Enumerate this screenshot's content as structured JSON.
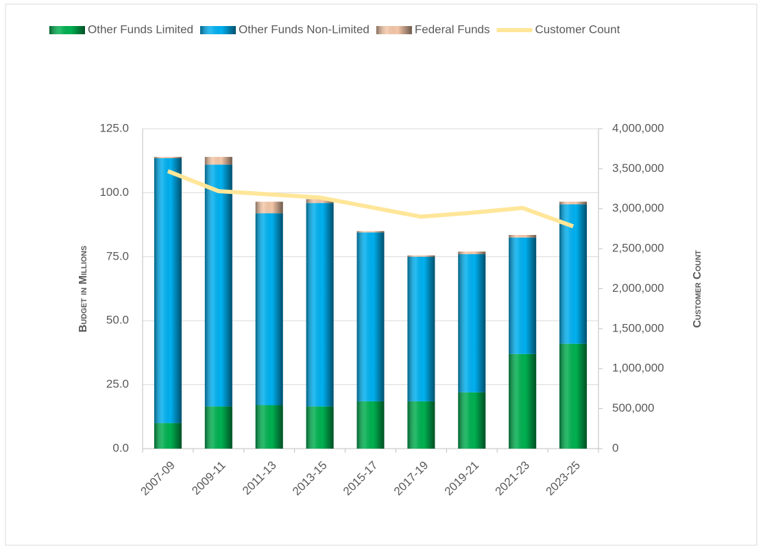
{
  "chart_data": {
    "type": "bar",
    "categories": [
      "2007-09",
      "2009-11",
      "2011-13",
      "2013-15",
      "2015-17",
      "2017-19",
      "2019-21",
      "2021-23",
      "2023-25"
    ],
    "stacked": true,
    "series": [
      {
        "name": "Other Funds Limited",
        "color": "#00b050",
        "values": [
          10,
          16.5,
          17,
          16.5,
          18.5,
          18.5,
          22,
          37,
          41
        ]
      },
      {
        "name": "Other Funds Non-Limited",
        "color": "#00b0f0",
        "values": [
          103.5,
          94.5,
          75,
          79.5,
          66,
          56.5,
          54,
          45.5,
          54.5
        ]
      },
      {
        "name": "Federal Funds",
        "color": "#f4c7a8",
        "values": [
          0.5,
          3,
          4.5,
          1.5,
          0.5,
          0.5,
          1,
          1,
          1
        ]
      },
      {
        "name": "Customer Count",
        "color": "#ffe699",
        "type": "line",
        "axis": "y2",
        "values": [
          3470000,
          3220000,
          3180000,
          3140000,
          3020000,
          2900000,
          2950000,
          3010000,
          2780000
        ]
      }
    ],
    "y_label": "Budget in Millions",
    "y2_label": "Customer Count",
    "ylim": [
      0,
      125
    ],
    "yticks": [
      {
        "value": 0,
        "label": "0.0"
      },
      {
        "value": 25,
        "label": "25.0"
      },
      {
        "value": 50,
        "label": "50.0"
      },
      {
        "value": 75,
        "label": "75.0"
      },
      {
        "value": 100,
        "label": "100.0"
      },
      {
        "value": 125,
        "label": "125.0"
      }
    ],
    "y2lim": [
      0,
      4000000
    ],
    "y2ticks": [
      0,
      {
        "value": 500000,
        "label": "500,000"
      },
      {
        "value": 1000000,
        "label": "1,000,000"
      },
      {
        "value": 1500000,
        "label": "1,500,000"
      },
      {
        "value": 2000000,
        "label": "2,000,000"
      },
      {
        "value": 2500000,
        "label": "2,500,000"
      },
      {
        "value": 3000000,
        "label": "3,000,000"
      },
      {
        "value": 3500000,
        "label": "3,500,000"
      },
      {
        "value": 4000000,
        "label": "4,000,000"
      }
    ],
    "grid": true,
    "legend": "top"
  }
}
